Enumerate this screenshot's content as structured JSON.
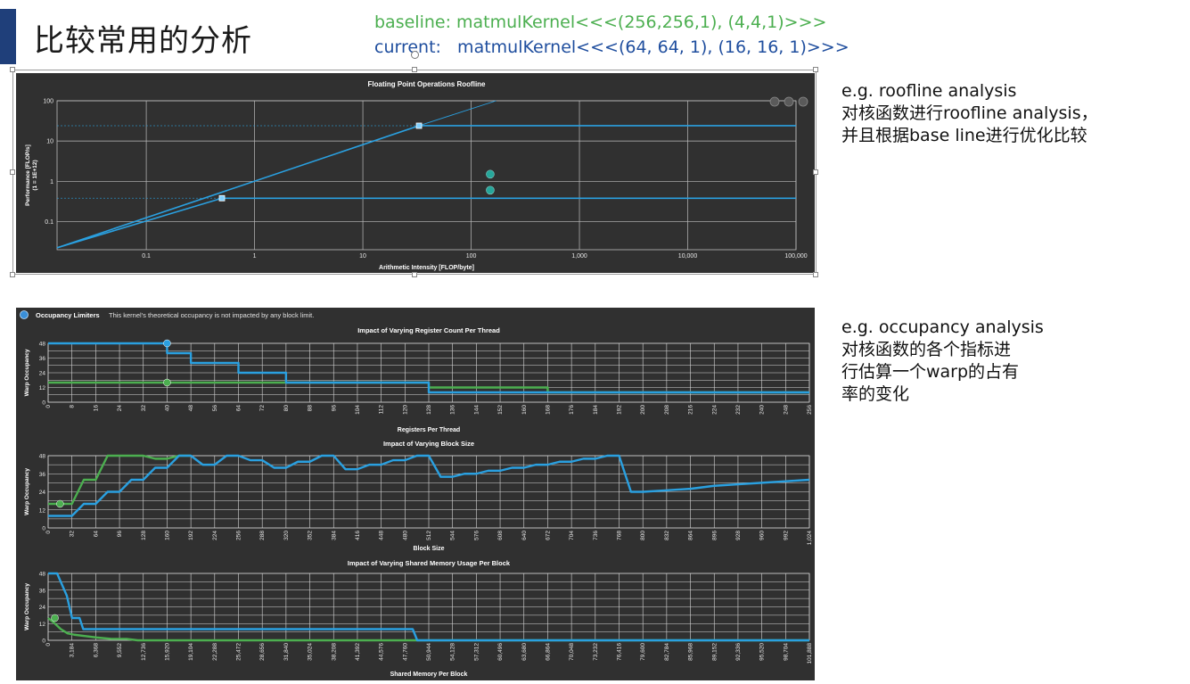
{
  "page": {
    "title": "比较常用的分析",
    "baseline_label": "baseline: matmulKernel<<<(256,256,1), (4,4,1)>>>",
    "current_label": "current:   matmulKernel<<<(64, 64, 1), (16, 16, 1)>>>"
  },
  "colors": {
    "baseline": "#4caf50",
    "current": "#2aa0e0",
    "panel_bg": "#303030",
    "grid": "#d8d8d8",
    "text_blue": "#1f4e9e"
  },
  "notes": {
    "roofline": [
      "e.g. roofline analysis",
      "对核函数进行roofline analysis，",
      "并且根据base line进行优化比较"
    ],
    "occupancy": [
      "e.g. occupancy analysis",
      "对核函数的各个指标进",
      "行估算一个warp的占有",
      "率的变化"
    ]
  },
  "roofline_panel": {
    "toolbar_icons": [
      "zoom-in-icon",
      "zoom-out-icon",
      "reset-icon"
    ]
  },
  "occupancy_panel": {
    "header_label": "Occupancy Limiters",
    "header_text": "This kernel's theoretical occupancy is not impacted by any block limit."
  },
  "chart_data": [
    {
      "type": "line",
      "title": "Floating Point Operations Roofline",
      "xlabel": "Arithmetic Intensity [FLOP/byte]",
      "ylabel": "Performance [FLOP/s]",
      "ylabel2": "(1 = 1E+12)",
      "x_scale": "log",
      "y_scale": "log",
      "xlim": [
        0.015,
        100000
      ],
      "ylim": [
        0.02,
        100
      ],
      "x_ticks": [
        0.1,
        1,
        10,
        100,
        1000,
        10000,
        100000
      ],
      "x_tick_labels": [
        "0.1",
        "1",
        "10",
        "100",
        "1,000",
        "10,000",
        "100,000"
      ],
      "y_ticks": [
        0.1,
        1,
        10,
        100
      ],
      "y_tick_labels": [
        "0.1",
        "1",
        "10",
        "100"
      ],
      "grid": true,
      "series": [
        {
          "kind": "roof",
          "points": [
            [
              0.015,
              0.0223
            ],
            [
              0.5,
              0.38
            ],
            [
              100000,
              0.38
            ]
          ]
        },
        {
          "kind": "roof",
          "points": [
            [
              0.015,
              0.0223
            ],
            [
              33,
              24
            ],
            [
              100000,
              24
            ]
          ]
        },
        {
          "kind": "roof-extension",
          "points": [
            [
              33,
              24
            ],
            [
              170,
              100
            ]
          ]
        },
        {
          "kind": "ridge-marker",
          "points": [
            [
              0.5,
              0.38
            ],
            [
              33,
              24
            ]
          ]
        },
        {
          "kind": "achieved",
          "points": [
            [
              150,
              0.6
            ]
          ]
        },
        {
          "kind": "achieved",
          "points": [
            [
              150,
              1.5
            ]
          ]
        }
      ]
    },
    {
      "type": "line",
      "title": "Impact of Varying Register Count Per Thread",
      "xlabel": "Registers Per Thread",
      "ylabel": "Warp Occupancy",
      "xlim": [
        0,
        256
      ],
      "ylim": [
        0,
        48
      ],
      "x_ticks": [
        0,
        8,
        16,
        24,
        32,
        40,
        48,
        56,
        64,
        72,
        80,
        88,
        96,
        104,
        112,
        120,
        128,
        136,
        144,
        152,
        160,
        168,
        176,
        184,
        192,
        200,
        208,
        216,
        224,
        232,
        240,
        248,
        256
      ],
      "y_ticks": [
        0,
        6,
        12,
        18,
        24,
        30,
        36,
        42,
        48
      ],
      "y_tick_labels": [
        "0",
        "",
        "12",
        "",
        "24",
        "",
        "36",
        "",
        "48"
      ],
      "series": [
        {
          "color_key": "current",
          "points": [
            [
              0,
              48
            ],
            [
              40,
              48
            ],
            [
              40,
              40
            ],
            [
              48,
              40
            ],
            [
              48,
              32
            ],
            [
              64,
              32
            ],
            [
              64,
              24
            ],
            [
              80,
              24
            ],
            [
              80,
              16
            ],
            [
              128,
              16
            ],
            [
              128,
              8
            ],
            [
              256,
              8
            ]
          ],
          "marker": [
            40,
            48
          ]
        },
        {
          "color_key": "baseline",
          "points": [
            [
              0,
              16
            ],
            [
              128,
              16
            ],
            [
              128,
              12
            ],
            [
              168,
              12
            ],
            [
              168,
              8
            ],
            [
              256,
              8
            ]
          ],
          "marker": [
            40,
            16
          ]
        }
      ]
    },
    {
      "type": "line",
      "title": "Impact of Varying Block Size",
      "xlabel": "Block Size",
      "ylabel": "Warp Occupancy",
      "xlim": [
        0,
        1024
      ],
      "ylim": [
        0,
        48
      ],
      "x_ticks": [
        0,
        32,
        64,
        96,
        128,
        160,
        192,
        224,
        256,
        288,
        320,
        352,
        384,
        416,
        448,
        480,
        512,
        544,
        576,
        608,
        640,
        672,
        704,
        736,
        768,
        800,
        832,
        864,
        896,
        928,
        960,
        992,
        1024
      ],
      "x_tick_labels": [
        "0",
        "32",
        "64",
        "96",
        "128",
        "160",
        "192",
        "224",
        "256",
        "288",
        "320",
        "352",
        "384",
        "416",
        "448",
        "480",
        "512",
        "544",
        "576",
        "608",
        "640",
        "672",
        "704",
        "736",
        "768",
        "800",
        "832",
        "864",
        "896",
        "928",
        "960",
        "992",
        "1,024"
      ],
      "y_ticks": [
        0,
        6,
        12,
        18,
        24,
        30,
        36,
        42,
        48
      ],
      "y_tick_labels": [
        "0",
        "",
        "12",
        "",
        "24",
        "",
        "36",
        "",
        "48"
      ],
      "series": [
        {
          "color_key": "current",
          "points": [
            [
              0,
              8
            ],
            [
              32,
              8
            ],
            [
              48,
              16
            ],
            [
              64,
              16
            ],
            [
              80,
              24
            ],
            [
              96,
              24
            ],
            [
              112,
              32
            ],
            [
              128,
              32
            ],
            [
              144,
              40
            ],
            [
              160,
              40
            ],
            [
              176,
              48
            ],
            [
              192,
              48
            ],
            [
              208,
              42
            ],
            [
              224,
              42
            ],
            [
              240,
              48
            ],
            [
              256,
              48
            ],
            [
              272,
              45
            ],
            [
              288,
              45
            ],
            [
              304,
              40
            ],
            [
              320,
              40
            ],
            [
              336,
              44
            ],
            [
              352,
              44
            ],
            [
              368,
              48
            ],
            [
              384,
              48
            ],
            [
              400,
              39
            ],
            [
              416,
              39
            ],
            [
              432,
              42
            ],
            [
              448,
              42
            ],
            [
              464,
              45
            ],
            [
              480,
              45
            ],
            [
              496,
              48
            ],
            [
              512,
              48
            ],
            [
              528,
              34
            ],
            [
              544,
              34
            ],
            [
              560,
              36
            ],
            [
              576,
              36
            ],
            [
              592,
              38
            ],
            [
              608,
              38
            ],
            [
              624,
              40
            ],
            [
              640,
              40
            ],
            [
              656,
              42
            ],
            [
              672,
              42
            ],
            [
              688,
              44
            ],
            [
              704,
              44
            ],
            [
              720,
              46
            ],
            [
              736,
              46
            ],
            [
              752,
              48
            ],
            [
              768,
              48
            ],
            [
              784,
              24
            ],
            [
              800,
              24
            ],
            [
              832,
              25
            ],
            [
              864,
              26
            ],
            [
              896,
              28
            ],
            [
              928,
              29
            ],
            [
              960,
              30
            ],
            [
              992,
              31
            ],
            [
              1024,
              32
            ]
          ],
          "marker": null
        },
        {
          "color_key": "baseline",
          "points": [
            [
              0,
              16
            ],
            [
              32,
              16
            ],
            [
              48,
              32
            ],
            [
              64,
              32
            ],
            [
              80,
              48
            ],
            [
              128,
              48
            ],
            [
              144,
              46
            ],
            [
              160,
              46
            ],
            [
              176,
              48
            ],
            [
              192,
              48
            ]
          ],
          "marker": [
            16,
            16
          ]
        }
      ]
    },
    {
      "type": "line",
      "title": "Impact of Varying Shared Memory Usage Per Block",
      "xlabel": "Shared Memory Per Block",
      "ylabel": "Warp Occupancy",
      "xlim": [
        0,
        101888
      ],
      "ylim": [
        0,
        48
      ],
      "x_ticks": [
        0,
        3184,
        6368,
        9552,
        12736,
        15920,
        19104,
        22288,
        25472,
        28656,
        31840,
        35024,
        38208,
        41392,
        44576,
        47760,
        50944,
        54128,
        57312,
        60496,
        63680,
        66864,
        70048,
        73232,
        76416,
        79600,
        82784,
        85968,
        89152,
        92336,
        95520,
        98704,
        101888
      ],
      "x_tick_labels": [
        "0",
        "3,184",
        "6,368",
        "9,552",
        "12,736",
        "15,920",
        "19,104",
        "22,288",
        "25,472",
        "28,656",
        "31,840",
        "35,024",
        "38,208",
        "41,392",
        "44,576",
        "47,760",
        "50,944",
        "54,128",
        "57,312",
        "60,496",
        "63,680",
        "66,864",
        "70,048",
        "73,232",
        "76,416",
        "79,600",
        "82,784",
        "85,968",
        "89,152",
        "92,336",
        "95,520",
        "98,704",
        "101,888"
      ],
      "y_ticks": [
        0,
        6,
        12,
        18,
        24,
        30,
        36,
        42,
        48
      ],
      "y_tick_labels": [
        "0",
        "",
        "12",
        "",
        "24",
        "",
        "36",
        "",
        "48"
      ],
      "series": [
        {
          "color_key": "current",
          "points": [
            [
              0,
              48
            ],
            [
              1200,
              48
            ],
            [
              2500,
              32
            ],
            [
              3200,
              16
            ],
            [
              4200,
              16
            ],
            [
              4700,
              8
            ],
            [
              5200,
              8
            ],
            [
              48800,
              8
            ],
            [
              49400,
              0
            ],
            [
              101888,
              0
            ]
          ],
          "marker": null
        },
        {
          "color_key": "baseline",
          "points": [
            [
              0,
              16
            ],
            [
              900,
              12
            ],
            [
              1700,
              8
            ],
            [
              2600,
              5
            ],
            [
              3500,
              4
            ],
            [
              5000,
              3
            ],
            [
              6500,
              2
            ],
            [
              8500,
              1
            ],
            [
              10500,
              1
            ],
            [
              12000,
              0
            ],
            [
              101888,
              0
            ]
          ],
          "marker": [
            900,
            16
          ]
        }
      ]
    }
  ]
}
